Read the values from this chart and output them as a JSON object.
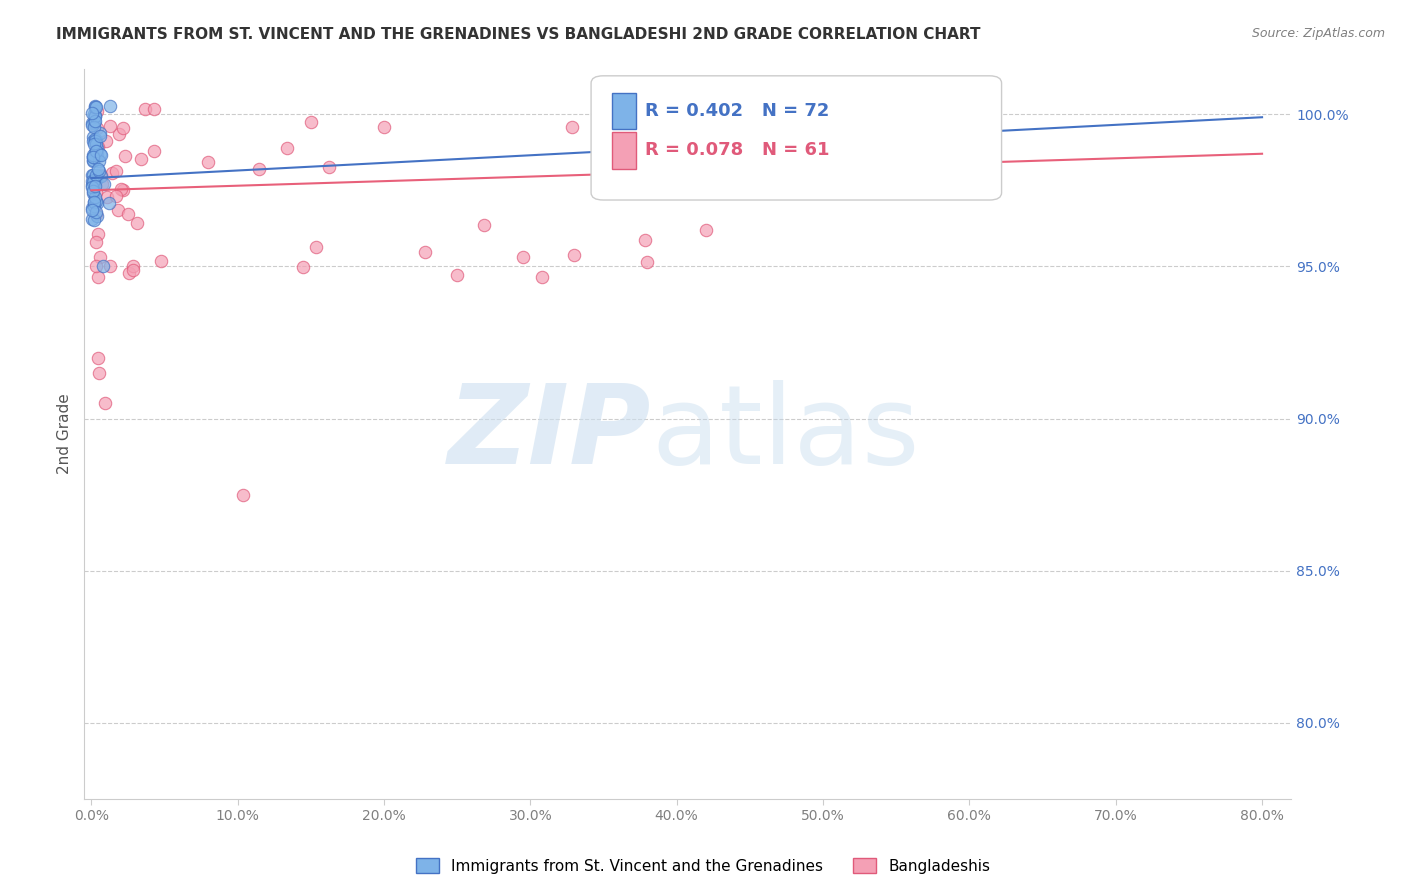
{
  "title": "IMMIGRANTS FROM ST. VINCENT AND THE GRENADINES VS BANGLADESHI 2ND GRADE CORRELATION CHART",
  "source": "Source: ZipAtlas.com",
  "ylabel": "2nd Grade",
  "ytick_labels": [
    "100.0%",
    "95.0%",
    "90.0%",
    "85.0%",
    "80.0%"
  ],
  "ytick_values": [
    1.0,
    0.95,
    0.9,
    0.85,
    0.8
  ],
  "xlim": [
    0.0,
    0.8
  ],
  "ylim": [
    0.775,
    1.015
  ],
  "blue_R": 0.402,
  "blue_N": 72,
  "pink_R": 0.078,
  "pink_N": 61,
  "blue_color": "#7EB3E8",
  "pink_color": "#F4A0B5",
  "blue_edge_color": "#4472C4",
  "pink_edge_color": "#E05A7A",
  "blue_line_color": "#4472C4",
  "pink_line_color": "#E8607A",
  "legend_label_blue": "Immigrants from St. Vincent and the Grenadines",
  "legend_label_pink": "Bangladeshis",
  "blue_trend_x": [
    0.0,
    0.8
  ],
  "blue_trend_y": [
    0.979,
    0.999
  ],
  "pink_trend_x": [
    0.0,
    0.8
  ],
  "pink_trend_y": [
    0.975,
    0.987
  ]
}
